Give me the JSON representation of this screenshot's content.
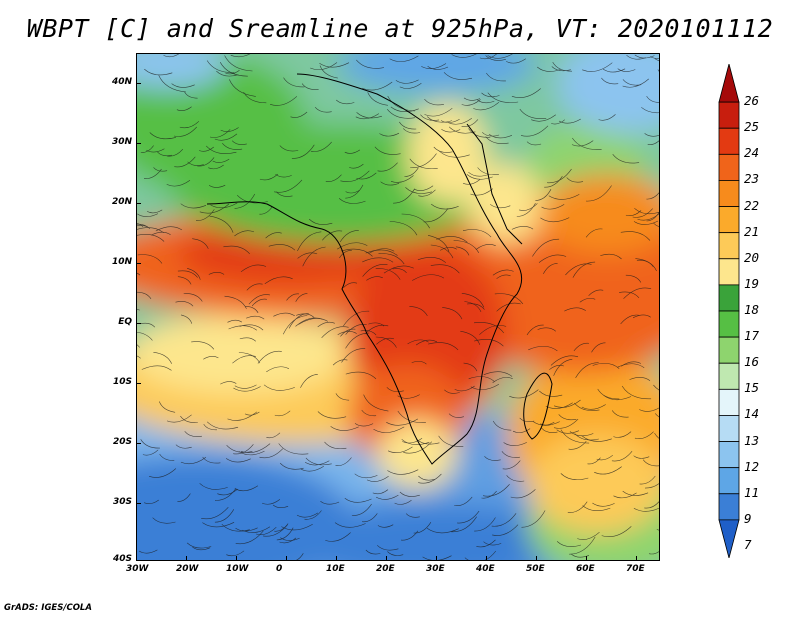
{
  "title": "WBPT [C] and Sreamline at 925hPa, VT: 2020101112",
  "credit": "GrADS: IGES/COLA",
  "lat_labels": [
    "40N",
    "30N",
    "20N",
    "10N",
    "EQ",
    "10S",
    "20S",
    "30S",
    "40S"
  ],
  "lon_labels": [
    "30W",
    "20W",
    "10W",
    "0",
    "10E",
    "20E",
    "30E",
    "40E",
    "50E",
    "60E",
    "70E"
  ],
  "colorbar": {
    "labels": [
      "26",
      "25",
      "24",
      "23",
      "22",
      "21",
      "20",
      "19",
      "18",
      "17",
      "16",
      "15",
      "14",
      "13",
      "12",
      "11",
      "9",
      "7"
    ],
    "colors": [
      "#a50a0a",
      "#c81e0e",
      "#e33a12",
      "#f0641a",
      "#f78b1c",
      "#fbaa2b",
      "#fdca58",
      "#fde68d",
      "#3aa33a",
      "#56bf44",
      "#8ed46e",
      "#bfe8b0",
      "#e4f5fa",
      "#b6dcf4",
      "#8cc4ef",
      "#5ea6e6",
      "#3b7fd6",
      "#1f5fc8"
    ]
  }
}
